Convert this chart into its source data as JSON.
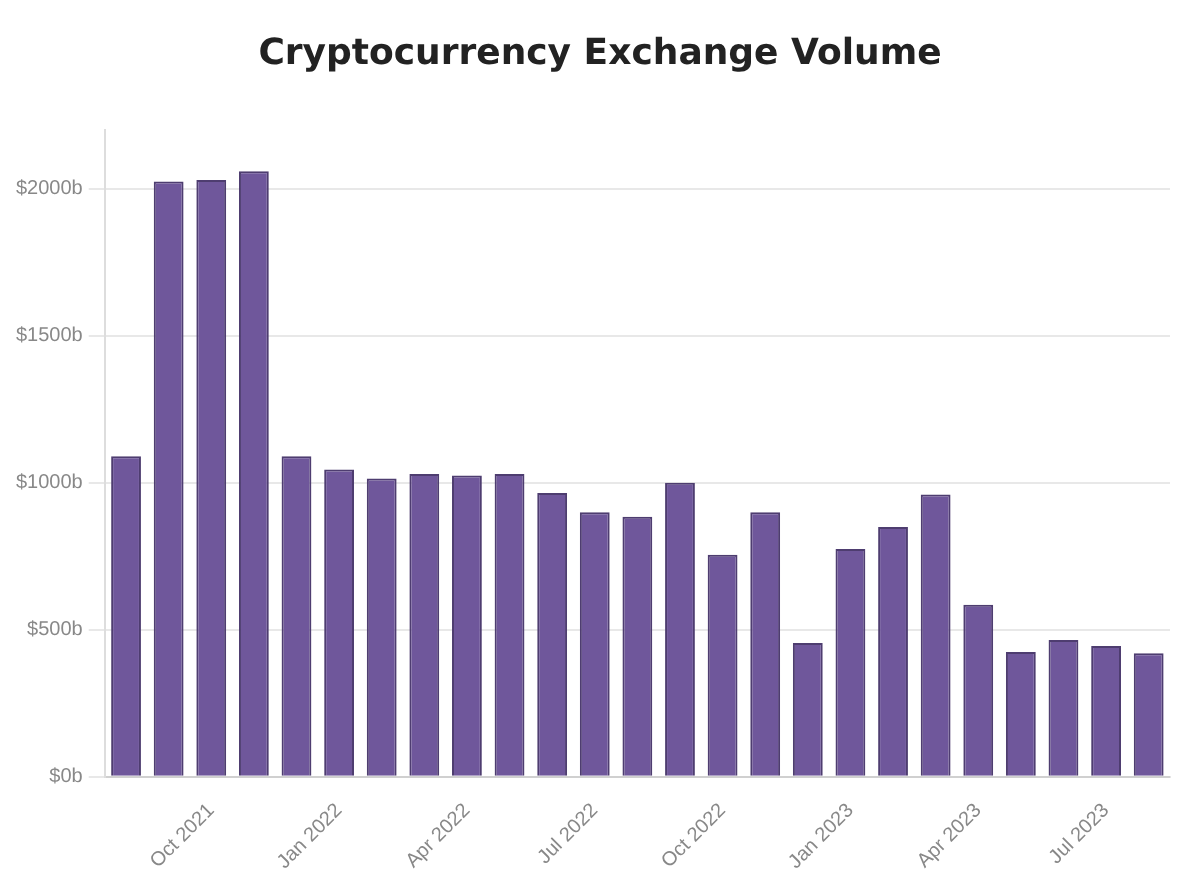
{
  "chart_data": {
    "type": "bar",
    "title": "Cryptocurrency Exchange Volume",
    "categories": [
      null,
      null,
      "Oct 2021",
      null,
      null,
      "Jan 2022",
      null,
      null,
      "Apr 2022",
      null,
      null,
      "Jul 2022",
      null,
      null,
      "Oct 2022",
      null,
      null,
      "Jan 2023",
      null,
      null,
      "Apr 2023",
      null,
      null,
      "Jul 2023",
      null
    ],
    "values": [
      1090,
      2025,
      2030,
      2060,
      1090,
      1045,
      1015,
      1030,
      1025,
      1030,
      965,
      900,
      885,
      1000,
      755,
      900,
      455,
      775,
      850,
      960,
      585,
      425,
      465,
      445,
      420
    ],
    "color": "#6f579b",
    "ylim": [
      0,
      2200
    ],
    "yticks": [
      {
        "value": 0,
        "label": "$0b"
      },
      {
        "value": 500,
        "label": "$500b"
      },
      {
        "value": 1000,
        "label": "$1000b"
      },
      {
        "value": 1500,
        "label": "$1500b"
      },
      {
        "value": 2000,
        "label": "$2000b"
      }
    ],
    "grid": "y"
  }
}
